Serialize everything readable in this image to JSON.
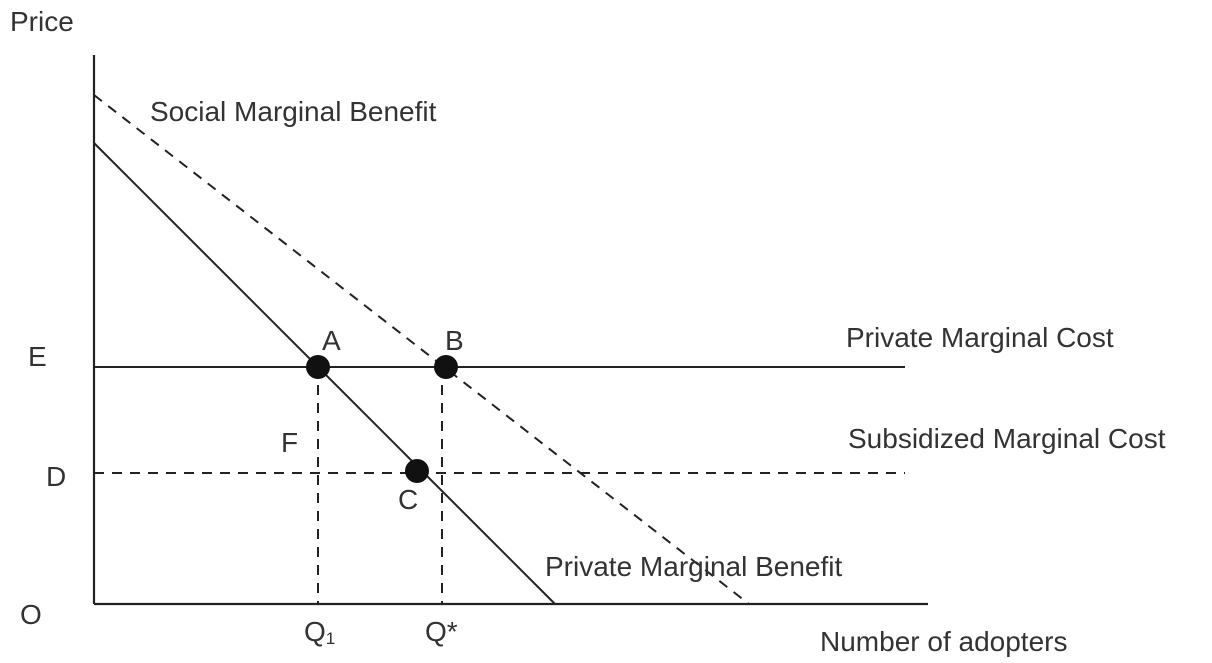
{
  "axes": {
    "y_label": "Price",
    "x_label": "Number of adopters",
    "origin_label": "O"
  },
  "price_levels": {
    "e_label": "E",
    "d_label": "D"
  },
  "quantity_levels": {
    "q1_label": "Q",
    "q1_subscript": "1",
    "qstar_label": "Q*"
  },
  "curves": {
    "social_marginal_benefit": "Social Marginal Benefit",
    "private_marginal_benefit": "Private Marginal Benefit",
    "private_marginal_cost": "Private Marginal Cost",
    "subsidized_marginal_cost": "Subsidized Marginal Cost"
  },
  "points": {
    "a": "A",
    "b": "B",
    "c": "C",
    "f": "F"
  }
}
